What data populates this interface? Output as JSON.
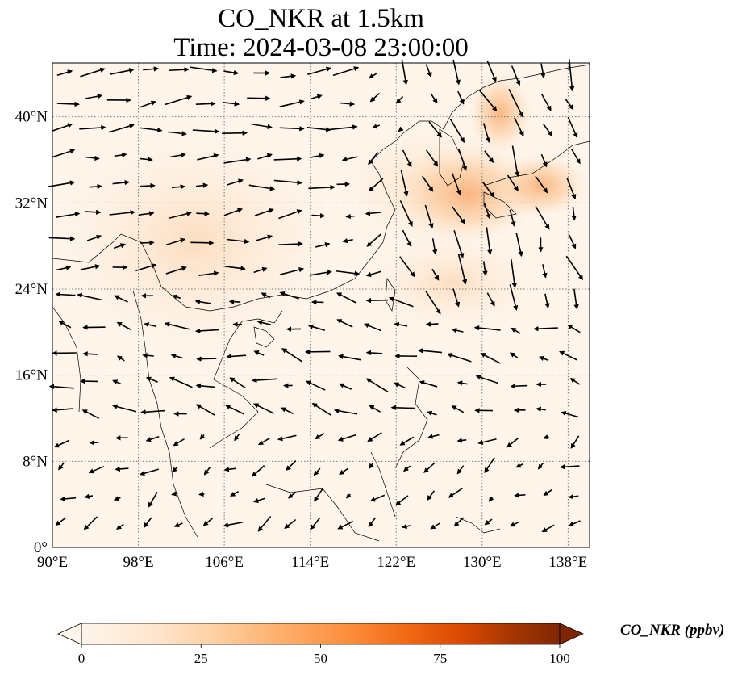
{
  "title_line1": "CO_NKR at 1.5km",
  "title_line2": "Time: 2024-03-08 23:00:00",
  "map": {
    "lon_range": [
      90,
      140
    ],
    "lat_range": [
      0,
      45
    ],
    "lon_ticks": [
      "90°E",
      "98°E",
      "106°E",
      "114°E",
      "122°E",
      "130°E",
      "138°E"
    ],
    "lat_ticks": [
      "0°",
      "8°N",
      "16°N",
      "24°N",
      "32°N",
      "40°N"
    ],
    "gridlines": true,
    "field_color_low": "#fff5eb",
    "field_color_high": "#fdd0a2"
  },
  "colorbar": {
    "label": "CO_NKR (ppbv)",
    "ticks": [
      "0",
      "25",
      "50",
      "75",
      "100"
    ],
    "range": [
      0,
      100
    ],
    "extend": "both",
    "colormap": [
      "#fff5eb",
      "#fee6ce",
      "#fdd0a2",
      "#fdae6b",
      "#fd8d3c",
      "#f16913",
      "#d94801",
      "#a63603",
      "#7f2704"
    ]
  }
}
